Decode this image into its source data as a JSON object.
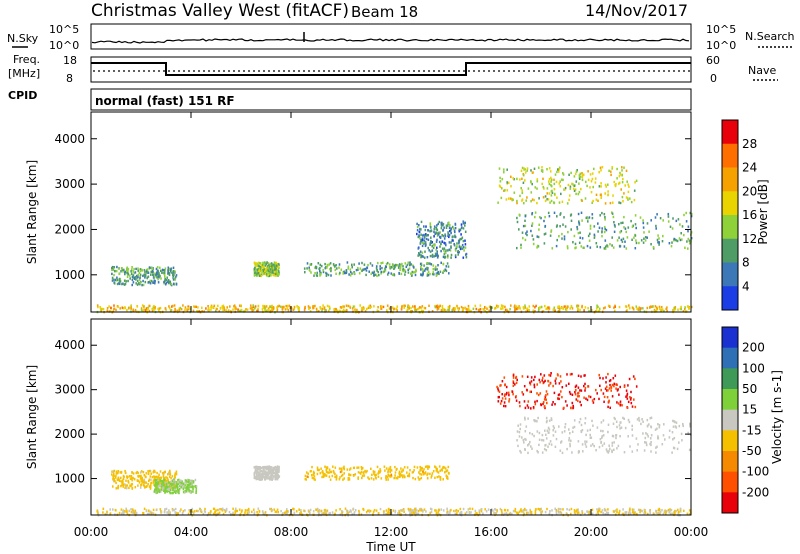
{
  "header": {
    "title": "Christmas Valley West (fitACF)",
    "beam": "Beam 18",
    "date": "14/Nov/2017"
  },
  "strip": {
    "nsky_label": "N.Sky",
    "nsky_ticks": [
      "10^5",
      "10^0"
    ],
    "nsearch_label": "N.Search",
    "nsearch_ticks": [
      "10^5",
      "10^0"
    ],
    "freq_label_line1": "Freq.",
    "freq_label_line2": "[MHz]",
    "freq_ticks": [
      "18",
      "8"
    ],
    "nave_label": "Nave",
    "nave_ticks": [
      "60",
      "0"
    ],
    "cpid_label": "CPID",
    "cpid_value": "normal (fast) 151 RF"
  },
  "chart_data": [
    {
      "type": "heatmap",
      "name": "power",
      "ylabel": "Slant Range [km]",
      "ylim": [
        180,
        4590
      ],
      "yticks": [
        "1000",
        "2000",
        "3000",
        "4000"
      ],
      "xlim": [
        0,
        24
      ],
      "colorbar_label": "Power [dB]",
      "colorbar_ticks": [
        "28",
        "24",
        "20",
        "16",
        "12",
        "8",
        "4"
      ],
      "colors": [
        "#e8000b",
        "#ff6f00",
        "#f5a100",
        "#e9d300",
        "#8fd138",
        "#4f9c67",
        "#3c77b8",
        "#1a3de6"
      ],
      "echo_bands": [
        {
          "t": [
            0.8,
            3.4
          ],
          "range": [
            800,
            1200
          ],
          "value": 10
        },
        {
          "t": [
            6.5,
            7.5
          ],
          "range": [
            1000,
            1300
          ],
          "value": 14
        },
        {
          "t": [
            8.5,
            14.3
          ],
          "range": [
            1000,
            1300
          ],
          "value": 10
        },
        {
          "t": [
            13.0,
            15.0
          ],
          "range": [
            1400,
            2200
          ],
          "value": 8
        },
        {
          "t": [
            16.2,
            21.8
          ],
          "range": [
            2600,
            3400
          ],
          "value": 16
        },
        {
          "t": [
            17.0,
            24.0
          ],
          "range": [
            1600,
            2400
          ],
          "value": 10
        },
        {
          "t": [
            0.2,
            24.0
          ],
          "range": [
            200,
            350
          ],
          "value": 20
        }
      ]
    },
    {
      "type": "heatmap",
      "name": "velocity",
      "ylabel": "Slant Range [km]",
      "ylim": [
        180,
        4590
      ],
      "yticks": [
        "1000",
        "2000",
        "3000",
        "4000"
      ],
      "xlim": [
        0,
        24
      ],
      "xlabel": "Time UT",
      "xticks": [
        "00:00",
        "04:00",
        "08:00",
        "12:00",
        "16:00",
        "20:00",
        "00:00"
      ],
      "colorbar_label": "Velocity [m s-1]",
      "colorbar_ticks": [
        "200",
        "100",
        "50",
        "15",
        "-15",
        "-50",
        "-100",
        "-200"
      ],
      "colors": [
        "#1a30d0",
        "#2f6fb5",
        "#3f9a58",
        "#7fd13a",
        "#c8c8c0",
        "#f5c000",
        "#f58a00",
        "#ff5000",
        "#e8000b"
      ],
      "echo_bands": [
        {
          "t": [
            0.8,
            3.4
          ],
          "range": [
            800,
            1200
          ],
          "value": -50
        },
        {
          "t": [
            2.5,
            4.2
          ],
          "range": [
            700,
            1000
          ],
          "value": 40
        },
        {
          "t": [
            6.5,
            7.5
          ],
          "range": [
            1000,
            1300
          ],
          "value": 0
        },
        {
          "t": [
            8.5,
            14.3
          ],
          "range": [
            1000,
            1300
          ],
          "value": -60
        },
        {
          "t": [
            16.2,
            21.8
          ],
          "range": [
            2600,
            3400
          ],
          "value": -200
        },
        {
          "t": [
            17.0,
            24.0
          ],
          "range": [
            1600,
            2400
          ],
          "value": 0
        },
        {
          "t": [
            0.2,
            24.0
          ],
          "range": [
            200,
            350
          ],
          "value": -30
        }
      ]
    }
  ]
}
